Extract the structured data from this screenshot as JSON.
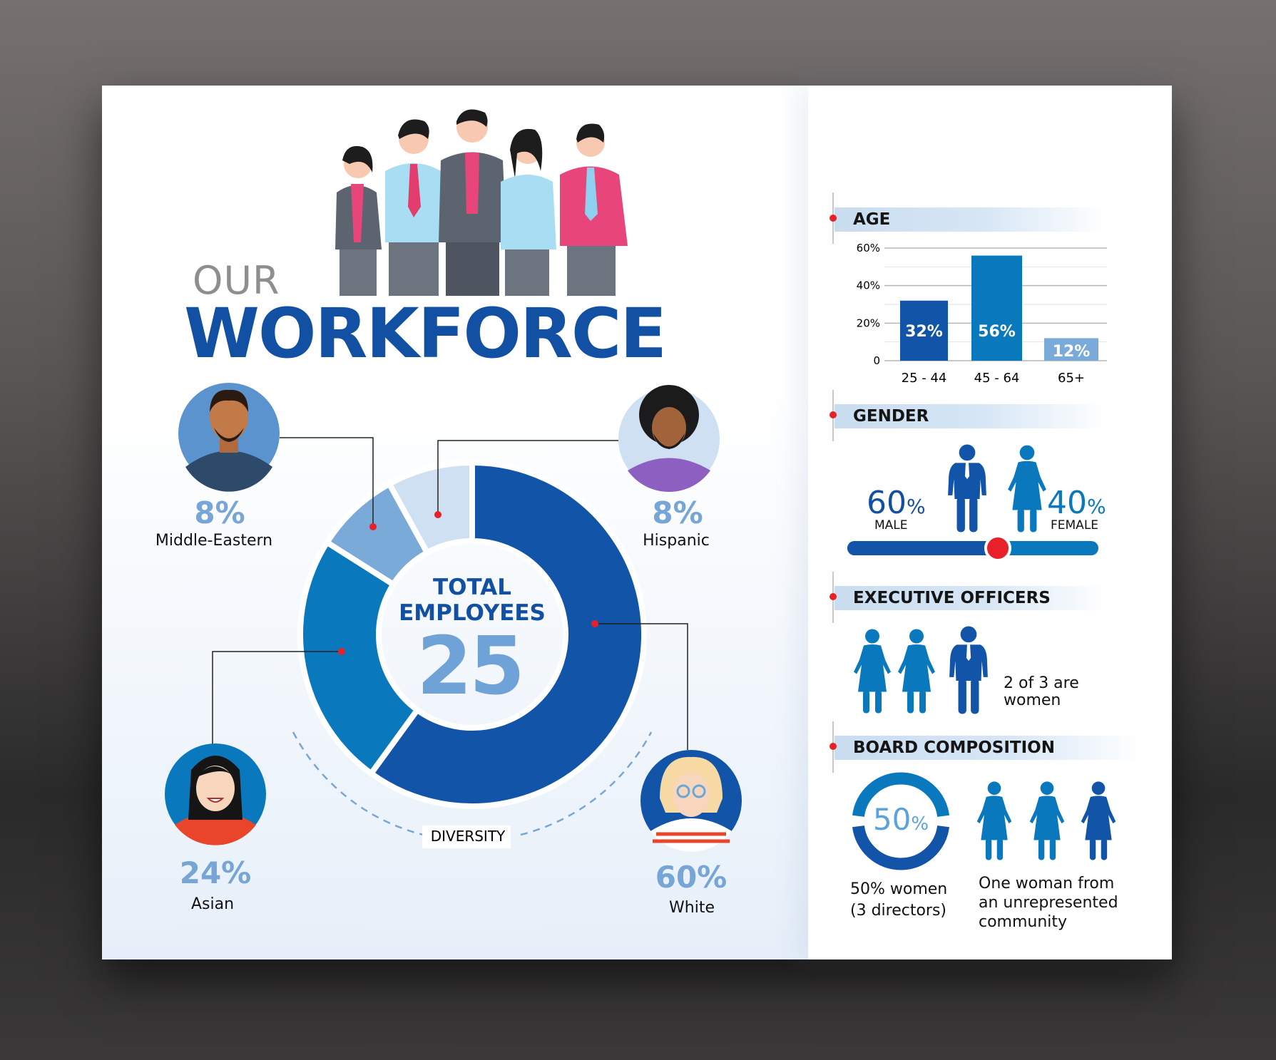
{
  "title": {
    "line1": "OUR",
    "line2": "WORKFORCE"
  },
  "center": {
    "line1": "TOTAL",
    "line2": "EMPLOYEES",
    "total": "25"
  },
  "diversity_label": "DIVERSITY",
  "groups": [
    {
      "pct": "8%",
      "label": "Middle-Eastern"
    },
    {
      "pct": "8%",
      "label": "Hispanic"
    },
    {
      "pct": "24%",
      "label": "Asian"
    },
    {
      "pct": "60%",
      "label": "White"
    }
  ],
  "chart_data": [
    {
      "type": "pie",
      "title": "",
      "categories": [
        "White",
        "Asian",
        "Middle-Eastern",
        "Hispanic"
      ],
      "values": [
        60,
        24,
        8,
        8
      ],
      "colors": [
        "#1254a8",
        "#0a78bd",
        "#7aaad8",
        "#cfe0f2"
      ],
      "style": "donut"
    },
    {
      "type": "bar",
      "title": "AGE",
      "categories": [
        "25 - 44",
        "45 - 64",
        "65+"
      ],
      "values": [
        32,
        56,
        12
      ],
      "data_labels": [
        "32%",
        "56%",
        "12%"
      ],
      "colors": [
        "#1254a8",
        "#0a78bd",
        "#7aaad8"
      ],
      "yticks": [
        "0",
        "20%",
        "40%",
        "60%"
      ],
      "ylim": [
        0,
        60
      ],
      "grid": true
    }
  ],
  "sections": {
    "age": "AGE",
    "gender": {
      "title": "GENDER",
      "male_value": "60",
      "male_unit": "%",
      "male_label": "MALE",
      "female_value": "40",
      "female_unit": "%",
      "female_label": "FEMALE",
      "male_share": 60
    },
    "exec": {
      "title": "EXECUTIVE OFFICERS",
      "line1": "2 of 3 are",
      "line2": "women"
    },
    "board": {
      "title": "BOARD COMPOSITION",
      "ring_value": "50",
      "ring_unit": "%",
      "ring_share": 50,
      "left1": "50% women",
      "left2": "(3 directors)",
      "right1": "One woman from",
      "right2": "an unrepresented",
      "right3": "community"
    }
  },
  "colors": {
    "dark_blue": "#1254a8",
    "mid_blue": "#0a78bd",
    "light_blue": "#7aaad8",
    "accent_red": "#e8202a"
  }
}
